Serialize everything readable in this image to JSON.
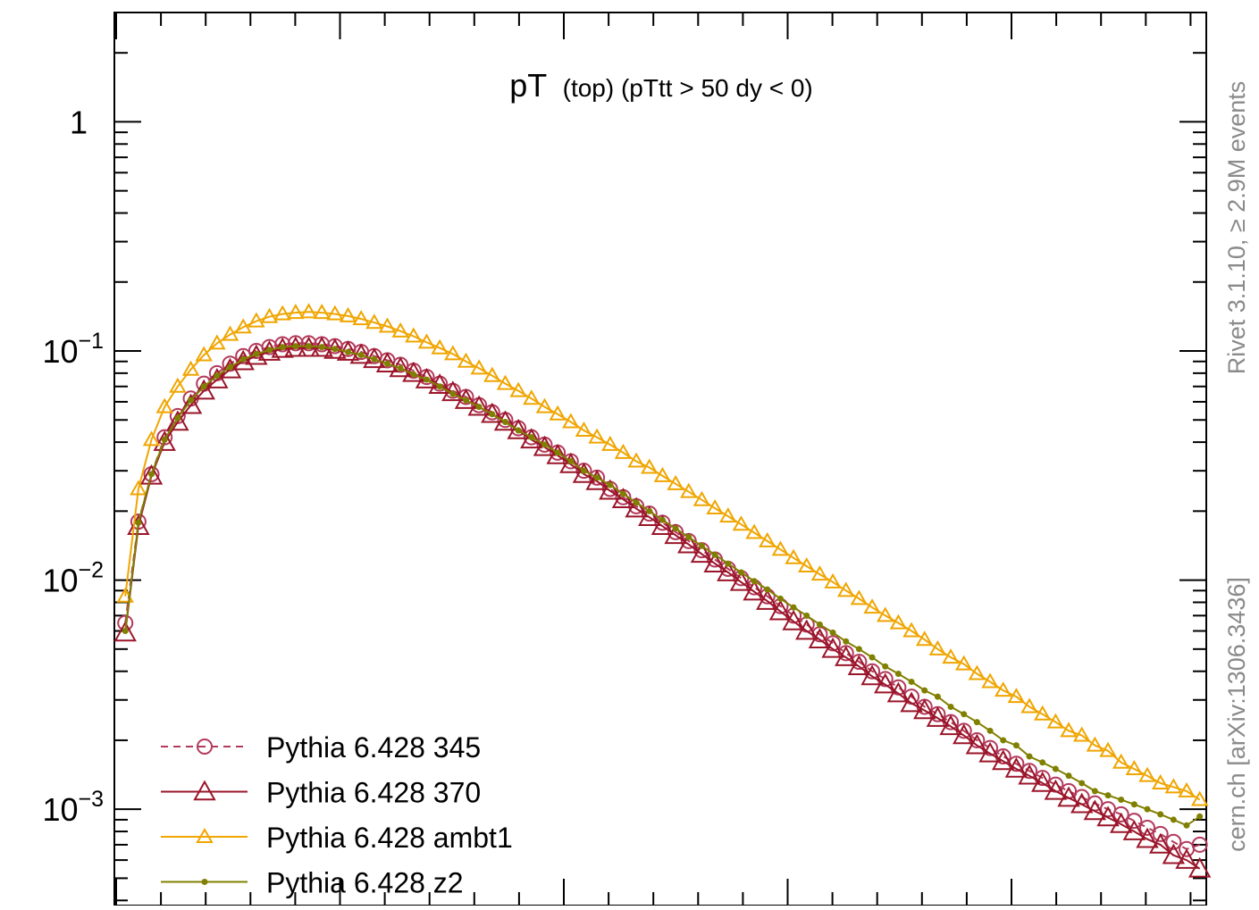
{
  "chart_data": {
    "type": "line",
    "title_main": "pT",
    "title_suffix": "(top) (pTtt > 50 dy < 0)",
    "yscale": "log",
    "ylim": [
      0.00038,
      3.0
    ],
    "xlim": [
      0,
      1
    ],
    "x_ticks_labeled": false,
    "y_ticks": [
      {
        "value": 1,
        "label": "1"
      },
      {
        "value": 0.1,
        "label": "10",
        "exp": "−1"
      },
      {
        "value": 0.01,
        "label": "10",
        "exp": "−2"
      },
      {
        "value": 0.001,
        "label": "10",
        "exp": "−3"
      }
    ],
    "legend_position": "bottom-left",
    "x": [
      0.01,
      0.022,
      0.034,
      0.046,
      0.058,
      0.07,
      0.082,
      0.094,
      0.106,
      0.118,
      0.13,
      0.142,
      0.154,
      0.166,
      0.178,
      0.19,
      0.202,
      0.214,
      0.226,
      0.238,
      0.25,
      0.262,
      0.274,
      0.286,
      0.298,
      0.31,
      0.322,
      0.334,
      0.346,
      0.358,
      0.37,
      0.382,
      0.394,
      0.406,
      0.418,
      0.43,
      0.442,
      0.454,
      0.466,
      0.478,
      0.49,
      0.502,
      0.514,
      0.526,
      0.538,
      0.55,
      0.562,
      0.574,
      0.586,
      0.598,
      0.61,
      0.622,
      0.634,
      0.646,
      0.658,
      0.67,
      0.682,
      0.694,
      0.706,
      0.718,
      0.73,
      0.742,
      0.754,
      0.766,
      0.778,
      0.79,
      0.802,
      0.814,
      0.826,
      0.838,
      0.85,
      0.862,
      0.874,
      0.886,
      0.898,
      0.91,
      0.922,
      0.934,
      0.946,
      0.958,
      0.97,
      0.982,
      0.994
    ],
    "series": [
      {
        "name": "Pythia 6.428 345",
        "color": "#b33a5c",
        "style": "dashed",
        "marker": "circle",
        "values": [
          0.0065,
          0.018,
          0.029,
          0.042,
          0.052,
          0.062,
          0.072,
          0.08,
          0.088,
          0.095,
          0.1,
          0.104,
          0.107,
          0.108,
          0.108,
          0.107,
          0.105,
          0.102,
          0.099,
          0.095,
          0.091,
          0.087,
          0.082,
          0.077,
          0.072,
          0.067,
          0.063,
          0.058,
          0.054,
          0.05,
          0.046,
          0.042,
          0.039,
          0.036,
          0.033,
          0.03,
          0.028,
          0.025,
          0.023,
          0.021,
          0.0195,
          0.0178,
          0.0162,
          0.0148,
          0.0135,
          0.0123,
          0.0112,
          0.0102,
          0.0093,
          0.0085,
          0.0077,
          0.007,
          0.0064,
          0.0058,
          0.0053,
          0.0048,
          0.0044,
          0.004,
          0.0037,
          0.0034,
          0.0031,
          0.0028,
          0.0026,
          0.0024,
          0.0022,
          0.002,
          0.00185,
          0.0017,
          0.00158,
          0.00147,
          0.00137,
          0.00128,
          0.0012,
          0.00113,
          0.00106,
          0.001,
          0.00095,
          0.00089,
          0.00083,
          0.00078,
          0.00072,
          0.00067,
          0.0007
        ]
      },
      {
        "name": "Pythia 6.428 370",
        "color": "#9a1529",
        "style": "solid",
        "marker": "triangle-large",
        "values": [
          0.0059,
          0.0172,
          0.0285,
          0.04,
          0.049,
          0.058,
          0.067,
          0.075,
          0.083,
          0.09,
          0.095,
          0.099,
          0.102,
          0.103,
          0.103,
          0.103,
          0.101,
          0.099,
          0.096,
          0.092,
          0.088,
          0.084,
          0.08,
          0.075,
          0.071,
          0.066,
          0.061,
          0.057,
          0.053,
          0.049,
          0.045,
          0.041,
          0.038,
          0.035,
          0.032,
          0.029,
          0.027,
          0.0245,
          0.0225,
          0.0205,
          0.0188,
          0.0172,
          0.0157,
          0.0143,
          0.013,
          0.0118,
          0.0108,
          0.0098,
          0.0089,
          0.0081,
          0.0073,
          0.0066,
          0.006,
          0.0055,
          0.005,
          0.0046,
          0.0042,
          0.0038,
          0.0035,
          0.0032,
          0.0029,
          0.0027,
          0.0025,
          0.0023,
          0.0021,
          0.0019,
          0.00175,
          0.00162,
          0.0015,
          0.0014,
          0.0013,
          0.0012,
          0.00112,
          0.00105,
          0.00098,
          0.00092,
          0.00086,
          0.0008,
          0.00074,
          0.0007,
          0.00063,
          0.0006,
          0.00055
        ]
      },
      {
        "name": "Pythia 6.428 ambt1",
        "color": "#f0a500",
        "style": "solid",
        "marker": "triangle",
        "values": [
          0.0085,
          0.025,
          0.041,
          0.057,
          0.07,
          0.083,
          0.096,
          0.108,
          0.118,
          0.127,
          0.135,
          0.141,
          0.145,
          0.147,
          0.148,
          0.147,
          0.145,
          0.142,
          0.138,
          0.133,
          0.128,
          0.122,
          0.116,
          0.109,
          0.103,
          0.097,
          0.09,
          0.084,
          0.078,
          0.072,
          0.067,
          0.062,
          0.057,
          0.053,
          0.049,
          0.045,
          0.042,
          0.039,
          0.036,
          0.033,
          0.031,
          0.0285,
          0.0263,
          0.0243,
          0.0224,
          0.0206,
          0.019,
          0.0175,
          0.0161,
          0.0148,
          0.0136,
          0.0125,
          0.0115,
          0.0106,
          0.0098,
          0.009,
          0.0083,
          0.0076,
          0.007,
          0.0065,
          0.006,
          0.0055,
          0.005,
          0.0046,
          0.0043,
          0.0039,
          0.0036,
          0.0033,
          0.0031,
          0.0028,
          0.0026,
          0.0024,
          0.0022,
          0.0021,
          0.0019,
          0.0018,
          0.0016,
          0.0015,
          0.0014,
          0.0013,
          0.00125,
          0.0012,
          0.0011
        ]
      },
      {
        "name": "Pythia 6.428 z2",
        "color": "#808000",
        "style": "solid",
        "marker": "dot",
        "values": [
          0.006,
          0.0178,
          0.029,
          0.041,
          0.051,
          0.061,
          0.07,
          0.078,
          0.085,
          0.092,
          0.097,
          0.101,
          0.104,
          0.105,
          0.105,
          0.104,
          0.102,
          0.099,
          0.096,
          0.092,
          0.088,
          0.084,
          0.079,
          0.075,
          0.07,
          0.065,
          0.061,
          0.057,
          0.053,
          0.049,
          0.045,
          0.042,
          0.039,
          0.036,
          0.033,
          0.03,
          0.028,
          0.026,
          0.0238,
          0.0218,
          0.02,
          0.0183,
          0.0168,
          0.0154,
          0.0141,
          0.0129,
          0.0118,
          0.0108,
          0.0099,
          0.0091,
          0.0083,
          0.0076,
          0.007,
          0.0064,
          0.0059,
          0.0054,
          0.005,
          0.0046,
          0.0042,
          0.0039,
          0.0036,
          0.0033,
          0.0031,
          0.0028,
          0.0026,
          0.0024,
          0.0022,
          0.002,
          0.0019,
          0.0017,
          0.0016,
          0.0015,
          0.0014,
          0.0013,
          0.0012,
          0.00115,
          0.0011,
          0.00105,
          0.001,
          0.00095,
          0.0009,
          0.00085,
          0.00093
        ]
      }
    ]
  },
  "side_labels": {
    "rivet": "Rivet 3.1.10, ≥ 2.9M events",
    "reference": "cern.ch [arXiv:1306.3436]"
  }
}
